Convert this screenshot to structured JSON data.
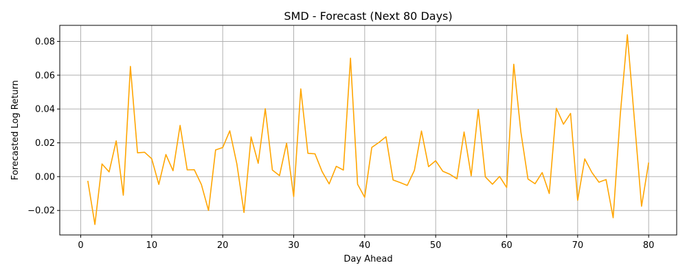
{
  "chart_data": {
    "type": "line",
    "title": "SMD - Forecast (Next 80 Days)",
    "xlabel": "Day Ahead",
    "ylabel": "Forecasted Log Return",
    "xlim": [
      -2.95,
      83.95
    ],
    "ylim": [
      -0.0345,
      0.0895
    ],
    "xticks": [
      0,
      10,
      20,
      30,
      40,
      50,
      60,
      70,
      80
    ],
    "xtick_labels": [
      "0",
      "10",
      "20",
      "30",
      "40",
      "50",
      "60",
      "70",
      "80"
    ],
    "yticks": [
      -0.02,
      0.0,
      0.02,
      0.04,
      0.06,
      0.08
    ],
    "ytick_labels": [
      "−0.02",
      "0.00",
      "0.02",
      "0.04",
      "0.06",
      "0.08"
    ],
    "grid": true,
    "color": "#FFA500",
    "series": [
      {
        "x": [
          1,
          2,
          3,
          4,
          5,
          6,
          7,
          8,
          9,
          10,
          11,
          12,
          13,
          14,
          15,
          16,
          17,
          18,
          19,
          20,
          21,
          22,
          23,
          24,
          25,
          26,
          27,
          28,
          29,
          30,
          31,
          32,
          33,
          34,
          35,
          36,
          37,
          38,
          39,
          40,
          41,
          42,
          43,
          44,
          45,
          46,
          47,
          48,
          49,
          50,
          51,
          52,
          53,
          54,
          55,
          56,
          57,
          58,
          59,
          60,
          61,
          62,
          63,
          64,
          65,
          66,
          67,
          68,
          69,
          70,
          71,
          72,
          73,
          74,
          75,
          76,
          77,
          78,
          79,
          80
        ],
        "values": [
          -0.0025,
          -0.0283,
          0.0075,
          0.0028,
          0.0212,
          -0.011,
          0.0652,
          0.0141,
          0.0144,
          0.0106,
          -0.0046,
          0.0131,
          0.0035,
          0.0303,
          0.004,
          0.0041,
          -0.0047,
          -0.02,
          0.0158,
          0.0172,
          0.0271,
          0.0074,
          -0.0212,
          0.0235,
          0.0079,
          0.0402,
          0.0039,
          0.0006,
          0.0198,
          -0.0118,
          0.0519,
          0.0138,
          0.0135,
          0.003,
          -0.0043,
          0.0061,
          0.0039,
          0.0701,
          -0.0045,
          -0.0122,
          0.0173,
          0.0202,
          0.0236,
          -0.002,
          -0.0035,
          -0.0052,
          0.0037,
          0.027,
          0.0059,
          0.0094,
          0.0032,
          0.0014,
          -0.0013,
          0.0264,
          0.0005,
          0.0397,
          -0.0002,
          -0.0045,
          0.0001,
          -0.0064,
          0.0665,
          0.0265,
          -0.0014,
          -0.0042,
          0.0024,
          -0.01,
          0.0404,
          0.031,
          0.0374,
          -0.014,
          0.0105,
          0.0025,
          -0.0033,
          -0.0017,
          -0.0243,
          0.0366,
          0.0839,
          0.0333,
          -0.0175,
          0.0083
        ]
      }
    ]
  }
}
